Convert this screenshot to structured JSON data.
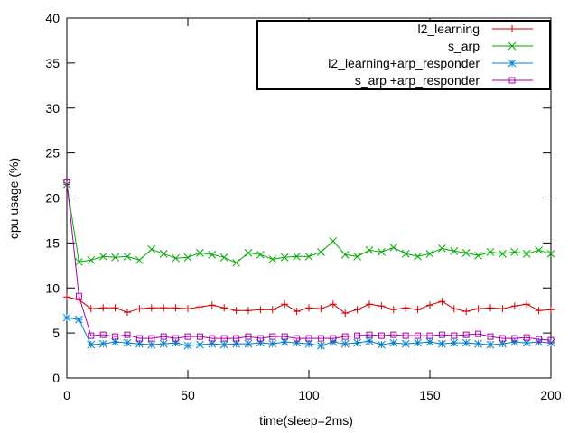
{
  "chart_data": {
    "type": "line",
    "title": "",
    "xlabel": "time(sleep=2ms)",
    "ylabel": "cpu usage (%)",
    "xlim": [
      0,
      200
    ],
    "ylim": [
      0,
      40
    ],
    "xticks": [
      0,
      50,
      100,
      150,
      200
    ],
    "yticks": [
      0,
      5,
      10,
      15,
      20,
      25,
      30,
      35,
      40
    ],
    "xtick_labels": [
      "0",
      "50",
      "100",
      "150",
      "200"
    ],
    "ytick_labels": [
      "0",
      "5",
      "10",
      "15",
      "20",
      "25",
      "30",
      "35",
      "40"
    ],
    "grid": false,
    "legend_position": "top-right",
    "x": [
      0,
      5,
      10,
      15,
      20,
      25,
      30,
      35,
      40,
      45,
      50,
      55,
      60,
      65,
      70,
      75,
      80,
      85,
      90,
      95,
      100,
      105,
      110,
      115,
      120,
      125,
      130,
      135,
      140,
      145,
      150,
      155,
      160,
      165,
      170,
      175,
      180,
      185,
      190,
      195,
      200
    ],
    "series": [
      {
        "name": "l2_learning",
        "color": "#cc0000",
        "marker": "plus",
        "values": [
          9.0,
          8.7,
          7.7,
          7.8,
          7.8,
          7.3,
          7.7,
          7.8,
          7.8,
          7.8,
          7.7,
          7.9,
          8.1,
          7.8,
          7.5,
          7.5,
          7.6,
          7.6,
          8.2,
          7.4,
          7.8,
          7.7,
          8.2,
          7.2,
          7.6,
          8.2,
          8.0,
          7.6,
          7.8,
          7.6,
          8.1,
          8.5,
          7.7,
          7.4,
          7.7,
          7.8,
          7.7,
          8.0,
          8.2,
          7.5,
          7.6
        ]
      },
      {
        "name": "s_arp",
        "color": "#00aa00",
        "marker": "cross",
        "values": [
          21.5,
          12.9,
          13.1,
          13.5,
          13.4,
          13.5,
          13.1,
          14.3,
          13.8,
          13.3,
          13.4,
          13.9,
          13.7,
          13.4,
          12.8,
          13.9,
          13.7,
          13.2,
          13.4,
          13.5,
          13.5,
          14.0,
          15.2,
          13.7,
          13.5,
          14.2,
          14.0,
          14.5,
          13.8,
          13.5,
          13.8,
          14.4,
          14.1,
          13.9,
          13.6,
          14.0,
          13.8,
          14.0,
          13.8,
          14.2,
          13.8
        ]
      },
      {
        "name": "l2_learning+arp_responder",
        "color": "#0080cc",
        "marker": "star",
        "values": [
          6.7,
          6.5,
          3.7,
          3.8,
          4.0,
          3.9,
          3.8,
          3.7,
          3.8,
          3.9,
          3.6,
          3.7,
          3.8,
          3.7,
          3.8,
          3.8,
          3.9,
          3.8,
          4.0,
          3.9,
          3.8,
          3.6,
          4.0,
          3.8,
          3.9,
          4.1,
          3.7,
          3.9,
          3.8,
          3.9,
          4.0,
          3.8,
          3.9,
          3.9,
          3.8,
          3.7,
          3.8,
          4.0,
          3.9,
          4.0,
          3.9
        ]
      },
      {
        "name": "s_arp +arp_responder",
        "color": "#aa00aa",
        "marker": "square",
        "values": [
          21.8,
          9.1,
          4.7,
          4.8,
          4.6,
          4.8,
          4.4,
          4.4,
          4.6,
          4.4,
          4.6,
          4.6,
          4.4,
          4.4,
          4.4,
          4.6,
          4.4,
          4.6,
          4.6,
          4.4,
          4.4,
          4.4,
          4.4,
          4.6,
          4.7,
          4.8,
          4.7,
          4.8,
          4.7,
          4.7,
          4.7,
          4.8,
          4.7,
          4.8,
          4.9,
          4.6,
          4.4,
          4.4,
          4.5,
          4.3,
          4.2
        ]
      }
    ]
  }
}
